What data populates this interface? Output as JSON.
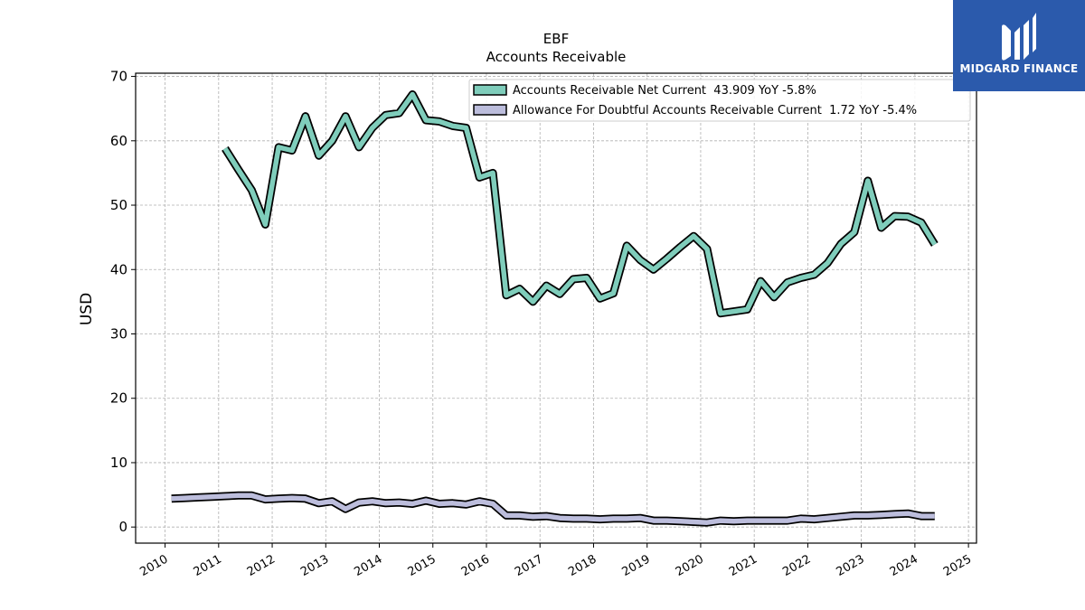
{
  "brand": {
    "name": "MIDGARD FINANCE",
    "color": "#2b5aac"
  },
  "chart_data": {
    "type": "line",
    "title": "EBF",
    "subtitle": "Accounts Receivable",
    "ylabel": "USD",
    "xlabel": "",
    "xlim": [
      2009.45,
      2025.15
    ],
    "ylim": [
      -2.5,
      70.5
    ],
    "x_ticks": [
      "2010",
      "2011",
      "2012",
      "2013",
      "2014",
      "2015",
      "2016",
      "2017",
      "2018",
      "2019",
      "2020",
      "2021",
      "2022",
      "2023",
      "2024",
      "2025"
    ],
    "y_ticks": [
      "0",
      "10",
      "20",
      "30",
      "40",
      "50",
      "60",
      "70"
    ],
    "grid": true,
    "legend_position": "top-right",
    "series": [
      {
        "name": "Accounts Receivable Net Current  43.909 YoY -5.8%",
        "color": "#7fcdbb",
        "x": [
          2011.12,
          2011.37,
          2011.62,
          2011.87,
          2012.12,
          2012.37,
          2012.62,
          2012.87,
          2013.12,
          2013.37,
          2013.62,
          2013.87,
          2014.12,
          2014.37,
          2014.62,
          2014.87,
          2015.12,
          2015.37,
          2015.62,
          2015.87,
          2016.12,
          2016.37,
          2016.62,
          2016.87,
          2017.12,
          2017.37,
          2017.62,
          2017.87,
          2018.12,
          2018.37,
          2018.62,
          2018.87,
          2019.12,
          2019.37,
          2019.62,
          2019.87,
          2020.12,
          2020.37,
          2020.62,
          2020.87,
          2021.12,
          2021.37,
          2021.62,
          2021.87,
          2022.12,
          2022.37,
          2022.62,
          2022.87,
          2023.12,
          2023.37,
          2023.62,
          2023.87,
          2024.12,
          2024.37
        ],
        "values": [
          58.8,
          55.5,
          52.3,
          47.0,
          59.0,
          58.5,
          63.8,
          57.7,
          60.0,
          63.8,
          59.0,
          62.0,
          64.0,
          64.3,
          67.2,
          63.2,
          63.0,
          62.3,
          62.0,
          54.3,
          55.0,
          36.0,
          37.0,
          35.0,
          37.5,
          36.2,
          38.5,
          38.7,
          35.5,
          36.3,
          43.7,
          41.5,
          40.0,
          41.7,
          43.5,
          45.2,
          43.2,
          33.2,
          33.5,
          33.8,
          38.2,
          35.7,
          38.0,
          38.7,
          39.2,
          41.0,
          44.0,
          45.8,
          53.8,
          46.5,
          48.3,
          48.2,
          47.3,
          43.9
        ]
      },
      {
        "name": "Allowance For Doubtful Accounts Receivable Current  1.72 YoY -5.4%",
        "color": "#bcbddc",
        "x": [
          2010.12,
          2010.37,
          2010.62,
          2010.87,
          2011.12,
          2011.37,
          2011.62,
          2011.87,
          2012.12,
          2012.37,
          2012.62,
          2012.87,
          2013.12,
          2013.37,
          2013.62,
          2013.87,
          2014.12,
          2014.37,
          2014.62,
          2014.87,
          2015.12,
          2015.37,
          2015.62,
          2015.87,
          2016.12,
          2016.37,
          2016.62,
          2016.87,
          2017.12,
          2017.37,
          2017.62,
          2017.87,
          2018.12,
          2018.37,
          2018.62,
          2018.87,
          2019.12,
          2019.37,
          2019.62,
          2019.87,
          2020.12,
          2020.37,
          2020.62,
          2020.87,
          2021.12,
          2021.37,
          2021.62,
          2021.87,
          2022.12,
          2022.37,
          2022.62,
          2022.87,
          2023.12,
          2023.37,
          2023.62,
          2023.87,
          2024.12,
          2024.37
        ],
        "values": [
          4.4,
          4.5,
          4.6,
          4.7,
          4.8,
          4.9,
          4.9,
          4.3,
          4.4,
          4.5,
          4.4,
          3.7,
          4.0,
          2.8,
          3.8,
          4.0,
          3.7,
          3.8,
          3.6,
          4.1,
          3.6,
          3.7,
          3.5,
          4.0,
          3.6,
          1.8,
          1.8,
          1.6,
          1.7,
          1.4,
          1.3,
          1.3,
          1.2,
          1.3,
          1.3,
          1.4,
          1.0,
          1.0,
          0.9,
          0.8,
          0.7,
          1.0,
          0.9,
          1.0,
          1.0,
          1.0,
          1.0,
          1.3,
          1.2,
          1.4,
          1.6,
          1.8,
          1.8,
          1.9,
          2.0,
          2.1,
          1.7,
          1.7
        ]
      }
    ]
  }
}
